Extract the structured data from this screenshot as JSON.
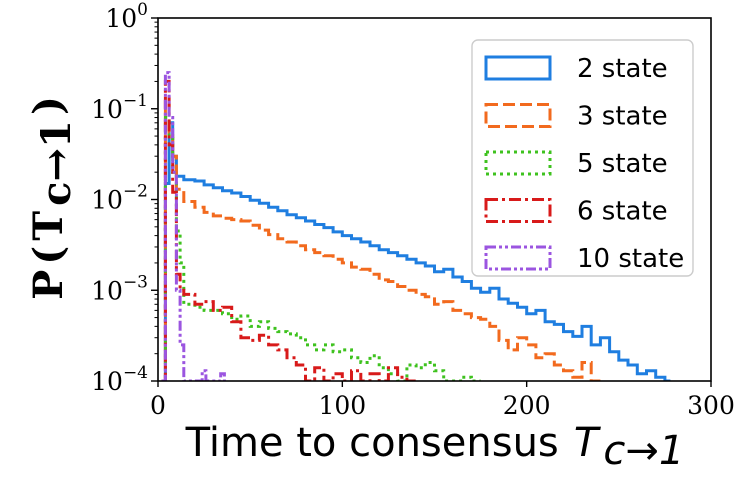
{
  "chart_data": {
    "type": "histogram",
    "title": "",
    "xlabel": "Time to consensus",
    "xlabel_math": {
      "base": "T",
      "sub": "c→1"
    },
    "ylabel": "P",
    "ylabel_math": {
      "base": "T",
      "sub": "c→1"
    },
    "xlim": [
      0,
      300
    ],
    "ylim": [
      0.0001,
      1
    ],
    "yscale": "log",
    "xticks": [
      0,
      100,
      200,
      300
    ],
    "xtick_labels": [
      "0",
      "100",
      "200",
      "300"
    ],
    "yticks": [
      0.0001,
      0.001,
      0.01,
      0.1,
      1
    ],
    "ytick_labels": [
      {
        "base": "10",
        "exp": "−4"
      },
      {
        "base": "10",
        "exp": "−3"
      },
      {
        "base": "10",
        "exp": "−2"
      },
      {
        "base": "10",
        "exp": "−1"
      },
      {
        "base": "10",
        "exp": "0"
      }
    ],
    "legend_position": "top-right",
    "series": [
      {
        "name": "2 state",
        "color": "#1f7ee0",
        "style": "solid",
        "bins": [
          [
            2,
            4,
            0.0001
          ],
          [
            4,
            6,
            0.015
          ],
          [
            6,
            8,
            0.07
          ],
          [
            8,
            10,
            0.03
          ],
          [
            10,
            14,
            0.018
          ],
          [
            14,
            20,
            0.0165
          ],
          [
            20,
            25,
            0.016
          ],
          [
            25,
            30,
            0.0145
          ],
          [
            30,
            35,
            0.0135
          ],
          [
            35,
            40,
            0.0125
          ],
          [
            40,
            45,
            0.0118
          ],
          [
            45,
            50,
            0.0108
          ],
          [
            50,
            55,
            0.0098
          ],
          [
            55,
            60,
            0.0091
          ],
          [
            60,
            65,
            0.0082
          ],
          [
            65,
            70,
            0.0075
          ],
          [
            70,
            75,
            0.0068
          ],
          [
            75,
            80,
            0.0063
          ],
          [
            80,
            85,
            0.0058
          ],
          [
            85,
            90,
            0.0053
          ],
          [
            90,
            95,
            0.0049
          ],
          [
            95,
            100,
            0.0044
          ],
          [
            100,
            105,
            0.004
          ],
          [
            105,
            110,
            0.0037
          ],
          [
            110,
            115,
            0.0034
          ],
          [
            115,
            120,
            0.0031
          ],
          [
            120,
            125,
            0.0028
          ],
          [
            125,
            130,
            0.0026
          ],
          [
            130,
            135,
            0.0024
          ],
          [
            135,
            140,
            0.0022
          ],
          [
            140,
            145,
            0.002
          ],
          [
            145,
            150,
            0.00185
          ],
          [
            150,
            155,
            0.0016
          ],
          [
            155,
            160,
            0.0017
          ],
          [
            160,
            165,
            0.0014
          ],
          [
            165,
            170,
            0.00125
          ],
          [
            170,
            175,
            0.00105
          ],
          [
            175,
            180,
            0.00095
          ],
          [
            180,
            185,
            0.00105
          ],
          [
            185,
            190,
            0.0008
          ],
          [
            190,
            195,
            0.00072
          ],
          [
            195,
            200,
            0.00065
          ],
          [
            200,
            205,
            0.00055
          ],
          [
            205,
            210,
            0.0006
          ],
          [
            210,
            215,
            0.00045
          ],
          [
            215,
            220,
            0.00042
          ],
          [
            220,
            225,
            0.00035
          ],
          [
            225,
            230,
            0.00031
          ],
          [
            230,
            235,
            0.0004
          ],
          [
            235,
            240,
            0.00025
          ],
          [
            240,
            245,
            0.0003
          ],
          [
            245,
            250,
            0.00021
          ],
          [
            250,
            255,
            0.00017
          ],
          [
            255,
            260,
            0.00015
          ],
          [
            260,
            265,
            0.00012
          ],
          [
            265,
            270,
            0.00013
          ],
          [
            270,
            275,
            0.00011
          ],
          [
            275,
            278,
            0.0001
          ]
        ]
      },
      {
        "name": "3 state",
        "color": "#f26a1e",
        "style": "dashed",
        "bins": [
          [
            2,
            4,
            0.0001
          ],
          [
            4,
            6,
            0.12
          ],
          [
            6,
            8,
            0.055
          ],
          [
            8,
            10,
            0.03
          ],
          [
            10,
            14,
            0.013
          ],
          [
            14,
            20,
            0.0095
          ],
          [
            20,
            25,
            0.0082
          ],
          [
            25,
            30,
            0.0072
          ],
          [
            30,
            35,
            0.0066
          ],
          [
            35,
            40,
            0.0062
          ],
          [
            40,
            45,
            0.006
          ],
          [
            45,
            50,
            0.0058
          ],
          [
            50,
            55,
            0.0052
          ],
          [
            55,
            60,
            0.0046
          ],
          [
            60,
            65,
            0.0041
          ],
          [
            65,
            70,
            0.0037
          ],
          [
            70,
            75,
            0.0034
          ],
          [
            75,
            80,
            0.0031
          ],
          [
            80,
            85,
            0.0028
          ],
          [
            85,
            90,
            0.0026
          ],
          [
            90,
            95,
            0.0024
          ],
          [
            95,
            100,
            0.0022
          ],
          [
            100,
            105,
            0.002
          ],
          [
            105,
            110,
            0.0018
          ],
          [
            110,
            115,
            0.0017
          ],
          [
            115,
            120,
            0.0015
          ],
          [
            120,
            125,
            0.0013
          ],
          [
            125,
            130,
            0.00125
          ],
          [
            130,
            135,
            0.0011
          ],
          [
            135,
            140,
            0.001
          ],
          [
            140,
            145,
            0.0009
          ],
          [
            145,
            150,
            0.00085
          ],
          [
            150,
            155,
            0.0007
          ],
          [
            155,
            160,
            0.00075
          ],
          [
            160,
            165,
            0.0006
          ],
          [
            165,
            170,
            0.00055
          ],
          [
            170,
            175,
            0.0005
          ],
          [
            175,
            180,
            0.00048
          ],
          [
            180,
            185,
            0.0004
          ],
          [
            185,
            190,
            0.00028
          ],
          [
            190,
            195,
            0.00022
          ],
          [
            195,
            200,
            0.0003
          ],
          [
            200,
            205,
            0.00025
          ],
          [
            205,
            210,
            0.00018
          ],
          [
            210,
            215,
            0.0002
          ],
          [
            215,
            220,
            0.00015
          ],
          [
            220,
            225,
            0.00013
          ],
          [
            225,
            230,
            0.00011
          ],
          [
            230,
            235,
            0.00016
          ],
          [
            235,
            240,
            0.0001
          ]
        ]
      },
      {
        "name": "5 state",
        "color": "#3ec21e",
        "style": "dotted",
        "bins": [
          [
            2,
            4,
            0.0001
          ],
          [
            4,
            6,
            0.08
          ],
          [
            6,
            8,
            0.05
          ],
          [
            8,
            10,
            0.02
          ],
          [
            10,
            12,
            0.0045
          ],
          [
            12,
            14,
            0.002
          ],
          [
            14,
            20,
            0.0007
          ],
          [
            20,
            25,
            0.00065
          ],
          [
            25,
            30,
            0.0006
          ],
          [
            30,
            35,
            0.0006
          ],
          [
            35,
            40,
            0.00055
          ],
          [
            40,
            45,
            0.00048
          ],
          [
            45,
            50,
            0.00052
          ],
          [
            50,
            55,
            0.0004
          ],
          [
            55,
            60,
            0.00045
          ],
          [
            60,
            65,
            0.00038
          ],
          [
            65,
            70,
            0.00035
          ],
          [
            70,
            75,
            0.00033
          ],
          [
            75,
            80,
            0.0003
          ],
          [
            80,
            85,
            0.00025
          ],
          [
            85,
            90,
            0.00022
          ],
          [
            90,
            95,
            0.00025
          ],
          [
            95,
            100,
            0.00021
          ],
          [
            100,
            105,
            0.00022
          ],
          [
            105,
            110,
            0.00018
          ],
          [
            110,
            115,
            0.00016
          ],
          [
            115,
            120,
            0.00019
          ],
          [
            120,
            125,
            0.00014
          ],
          [
            125,
            130,
            0.00012
          ],
          [
            130,
            135,
            0.0001
          ],
          [
            135,
            140,
            0.00015
          ],
          [
            140,
            145,
            0.00014
          ],
          [
            145,
            150,
            0.00016
          ],
          [
            150,
            155,
            0.00013
          ],
          [
            155,
            160,
            0.0001
          ],
          [
            160,
            165,
            0.0001
          ],
          [
            165,
            170,
            0.00011
          ],
          [
            170,
            175,
            0.0001
          ]
        ]
      },
      {
        "name": "6 state",
        "color": "#d81a1a",
        "style": "dash-dot",
        "bins": [
          [
            2,
            4,
            0.0001
          ],
          [
            4,
            6,
            0.2
          ],
          [
            6,
            8,
            0.04
          ],
          [
            8,
            10,
            0.012
          ],
          [
            10,
            12,
            0.0015
          ],
          [
            12,
            14,
            0.001
          ],
          [
            14,
            20,
            0.0009
          ],
          [
            20,
            25,
            0.0007
          ],
          [
            25,
            30,
            0.00075
          ],
          [
            30,
            35,
            0.0006
          ],
          [
            35,
            40,
            0.00065
          ],
          [
            40,
            45,
            0.00045
          ],
          [
            45,
            50,
            0.0003
          ],
          [
            50,
            55,
            0.00028
          ],
          [
            55,
            60,
            0.00032
          ],
          [
            60,
            65,
            0.00025
          ],
          [
            65,
            70,
            0.00022
          ],
          [
            70,
            75,
            0.00018
          ],
          [
            75,
            80,
            0.00015
          ],
          [
            80,
            85,
            0.0001
          ],
          [
            85,
            90,
            0.00014
          ],
          [
            90,
            95,
            0.0001
          ],
          [
            95,
            100,
            0.00012
          ],
          [
            100,
            105,
            0.0001
          ],
          [
            105,
            110,
            0.00013
          ],
          [
            110,
            115,
            0.0001
          ],
          [
            115,
            120,
            0.00012
          ],
          [
            120,
            125,
            0.0001
          ],
          [
            125,
            130,
            0.00014
          ],
          [
            130,
            135,
            0.00011
          ],
          [
            135,
            140,
            0.0001
          ]
        ]
      },
      {
        "name": "10 state",
        "color": "#9b55e0",
        "style": "dash-dot-dot",
        "bins": [
          [
            2,
            4,
            0.0001
          ],
          [
            4,
            6,
            0.25
          ],
          [
            6,
            8,
            0.08
          ],
          [
            8,
            10,
            0.02
          ],
          [
            10,
            12,
            0.001
          ],
          [
            12,
            14,
            0.00025
          ],
          [
            14,
            16,
            0.0001
          ],
          [
            16,
            24,
            0.0001
          ],
          [
            24,
            26,
            0.00013
          ],
          [
            26,
            34,
            0.0001
          ],
          [
            34,
            36,
            0.00012
          ],
          [
            36,
            38,
            0.0001
          ]
        ]
      }
    ]
  }
}
